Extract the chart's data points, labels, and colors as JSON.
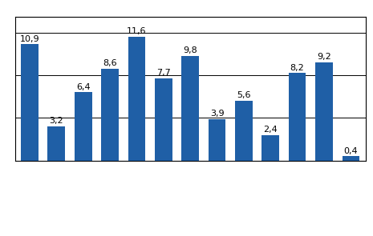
{
  "values": [
    10.9,
    3.2,
    6.4,
    8.6,
    11.6,
    7.7,
    9.8,
    3.9,
    5.6,
    2.4,
    8.2,
    9.2,
    0.4
  ],
  "bar_color": "#1f5fa6",
  "ylim": [
    0,
    13.5
  ],
  "yticks": [
    0,
    4,
    8,
    12
  ],
  "label_fontsize": 8.0,
  "background_color": "#ffffff",
  "bar_width": 0.65,
  "label_color": "#000000",
  "grid_color": "#000000",
  "spine_color": "#000000"
}
